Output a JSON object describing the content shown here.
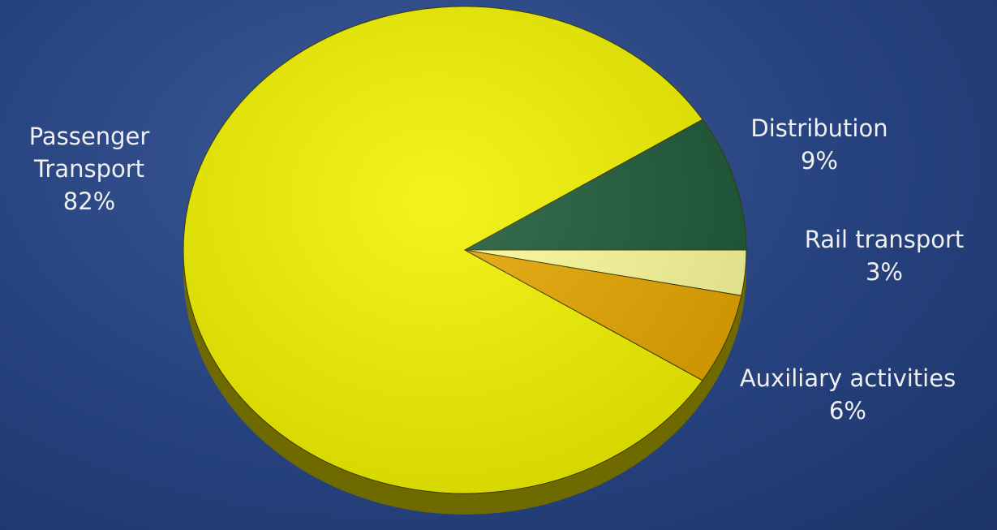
{
  "chart_data": {
    "type": "pie",
    "categories": [
      "Passenger Transport",
      "Distribution",
      "Rail transport",
      "Auxiliary activities"
    ],
    "values": [
      82,
      9,
      3,
      6
    ],
    "value_labels": [
      "82%",
      "9%",
      "3%",
      "6%"
    ],
    "colors": [
      "#f2f200",
      "#1e5a38",
      "#fbfb9a",
      "#e6a600"
    ]
  }
}
